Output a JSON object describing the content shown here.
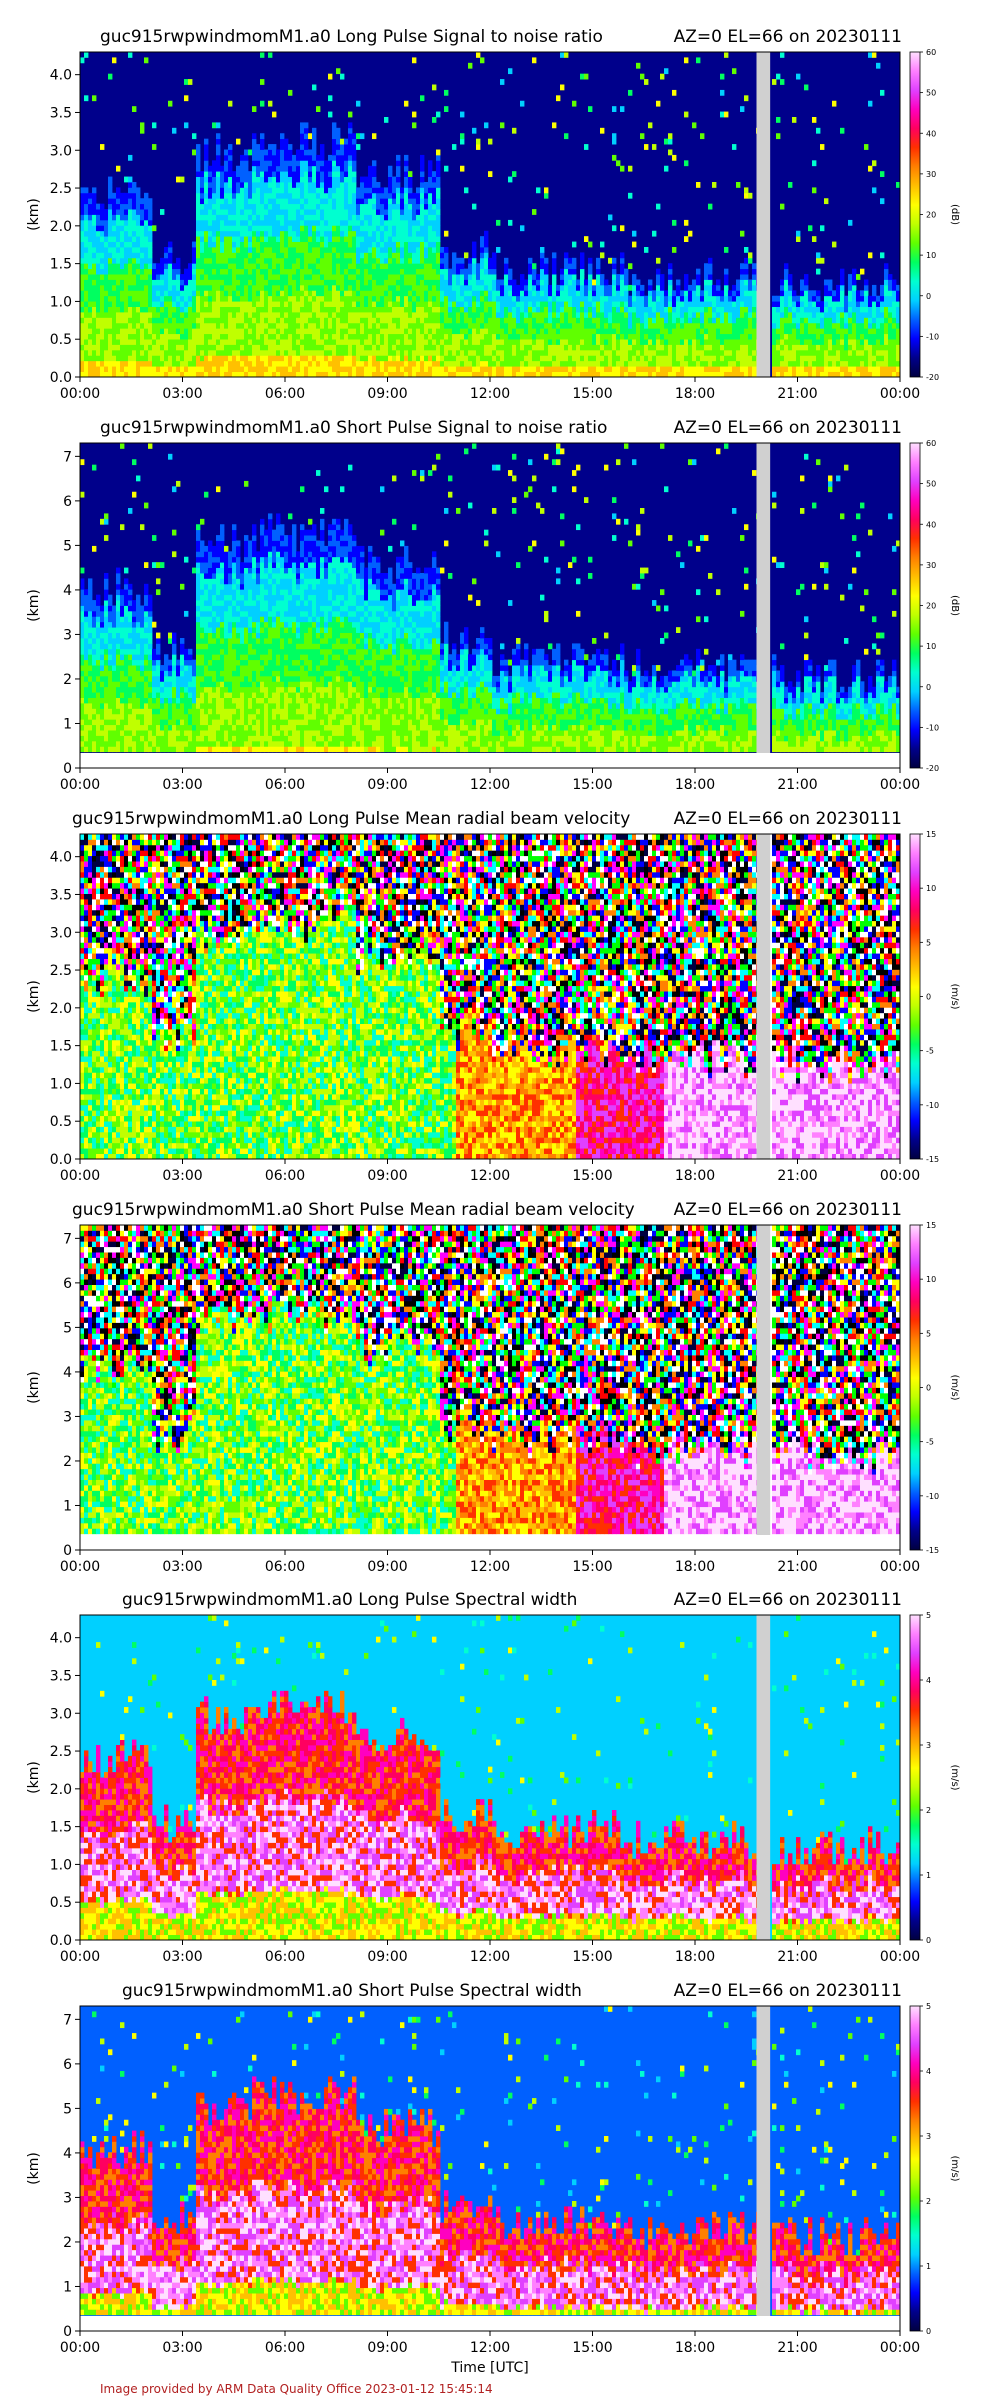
{
  "figure": {
    "xlabel": "Time [UTC]",
    "footer": "Image provided by ARM Data Quality Office 2023-01-12 15:45:14"
  },
  "colors": {
    "background": "#ffffff",
    "missing": "#d0d0d0",
    "footer": "#b22222",
    "colormap": [
      "#000040",
      "#00008b",
      "#0000ff",
      "#0060ff",
      "#00d0ff",
      "#00ffd0",
      "#00ff60",
      "#60ff00",
      "#c0ff00",
      "#ffff00",
      "#ffc000",
      "#ff8000",
      "#ff3000",
      "#ff0060",
      "#ff00c0",
      "#e040ff",
      "#ff80ff",
      "#ffe0ff"
    ]
  },
  "chart_data": [
    {
      "type": "heatmap",
      "title_left": "guc915rwpwindmomM1.a0 Long Pulse Signal to noise ratio",
      "title_right": "AZ=0 EL=66 on 20230111",
      "ylabel": "(km)",
      "xlim": [
        "00:00",
        "00:00"
      ],
      "ylim": [
        0,
        4.3
      ],
      "x_ticks": [
        "00:00",
        "03:00",
        "06:00",
        "09:00",
        "12:00",
        "15:00",
        "18:00",
        "21:00",
        "00:00"
      ],
      "y_ticks": [
        "0.0",
        "0.5",
        "1.0",
        "1.5",
        "2.0",
        "2.5",
        "3.0",
        "3.5",
        "4.0"
      ],
      "colorbar": {
        "unit": "(dB)",
        "ticks": [
          "-20",
          "-10",
          "0",
          "10",
          "20",
          "30",
          "40",
          "50",
          "60"
        ],
        "range": [
          -20,
          60
        ]
      },
      "missing_data": {
        "from_hour": 19.8,
        "to_hour": 20.2
      }
    },
    {
      "type": "heatmap",
      "title_left": "guc915rwpwindmomM1.a0 Short Pulse Signal to noise ratio",
      "title_right": "AZ=0 EL=66 on 20230111",
      "ylabel": "(km)",
      "xlim": [
        "00:00",
        "00:00"
      ],
      "ylim": [
        0,
        7.3
      ],
      "x_ticks": [
        "00:00",
        "03:00",
        "06:00",
        "09:00",
        "12:00",
        "15:00",
        "18:00",
        "21:00",
        "00:00"
      ],
      "y_ticks": [
        "0",
        "1",
        "2",
        "3",
        "4",
        "5",
        "6",
        "7"
      ],
      "colorbar": {
        "unit": "(dB)",
        "ticks": [
          "-20",
          "-10",
          "0",
          "10",
          "20",
          "30",
          "40",
          "50",
          "60"
        ],
        "range": [
          -20,
          60
        ]
      },
      "missing_data": {
        "from_hour": 19.8,
        "to_hour": 20.2
      }
    },
    {
      "type": "heatmap",
      "title_left": "guc915rwpwindmomM1.a0 Long Pulse Mean radial beam velocity",
      "title_right": "AZ=0 EL=66 on 20230111",
      "ylabel": "(km)",
      "xlim": [
        "00:00",
        "00:00"
      ],
      "ylim": [
        0,
        4.3
      ],
      "x_ticks": [
        "00:00",
        "03:00",
        "06:00",
        "09:00",
        "12:00",
        "15:00",
        "18:00",
        "21:00",
        "00:00"
      ],
      "y_ticks": [
        "0.0",
        "0.5",
        "1.0",
        "1.5",
        "2.0",
        "2.5",
        "3.0",
        "3.5",
        "4.0"
      ],
      "colorbar": {
        "unit": "(m/s)",
        "ticks": [
          "-15",
          "-10",
          "-5",
          "0",
          "5",
          "10",
          "15"
        ],
        "range": [
          -15,
          15
        ]
      },
      "missing_data": {
        "from_hour": 19.8,
        "to_hour": 20.2
      }
    },
    {
      "type": "heatmap",
      "title_left": "guc915rwpwindmomM1.a0 Short Pulse Mean radial beam velocity",
      "title_right": "AZ=0 EL=66 on 20230111",
      "ylabel": "(km)",
      "xlim": [
        "00:00",
        "00:00"
      ],
      "ylim": [
        0,
        7.3
      ],
      "x_ticks": [
        "00:00",
        "03:00",
        "06:00",
        "09:00",
        "12:00",
        "15:00",
        "18:00",
        "21:00",
        "00:00"
      ],
      "y_ticks": [
        "0",
        "1",
        "2",
        "3",
        "4",
        "5",
        "6",
        "7"
      ],
      "colorbar": {
        "unit": "(m/s)",
        "ticks": [
          "-15",
          "-10",
          "-5",
          "0",
          "5",
          "10",
          "15"
        ],
        "range": [
          -15,
          15
        ]
      },
      "missing_data": {
        "from_hour": 19.8,
        "to_hour": 20.2
      }
    },
    {
      "type": "heatmap",
      "title_left": "guc915rwpwindmomM1.a0 Long Pulse Spectral width",
      "title_right": "AZ=0 EL=66 on 20230111",
      "ylabel": "(km)",
      "xlim": [
        "00:00",
        "00:00"
      ],
      "ylim": [
        0,
        4.3
      ],
      "x_ticks": [
        "00:00",
        "03:00",
        "06:00",
        "09:00",
        "12:00",
        "15:00",
        "18:00",
        "21:00",
        "00:00"
      ],
      "y_ticks": [
        "0.0",
        "0.5",
        "1.0",
        "1.5",
        "2.0",
        "2.5",
        "3.0",
        "3.5",
        "4.0"
      ],
      "colorbar": {
        "unit": "(m/s)",
        "ticks": [
          "0",
          "1",
          "2",
          "3",
          "4",
          "5"
        ],
        "range": [
          0,
          5
        ]
      },
      "missing_data": {
        "from_hour": 19.8,
        "to_hour": 20.2
      }
    },
    {
      "type": "heatmap",
      "title_left": "guc915rwpwindmomM1.a0 Short Pulse Spectral width",
      "title_right": "AZ=0 EL=66 on 20230111",
      "ylabel": "(km)",
      "xlim": [
        "00:00",
        "00:00"
      ],
      "ylim": [
        0,
        7.3
      ],
      "x_ticks": [
        "00:00",
        "03:00",
        "06:00",
        "09:00",
        "12:00",
        "15:00",
        "18:00",
        "21:00",
        "00:00"
      ],
      "y_ticks": [
        "0",
        "1",
        "2",
        "3",
        "4",
        "5",
        "6",
        "7"
      ],
      "colorbar": {
        "unit": "(m/s)",
        "ticks": [
          "0",
          "1",
          "2",
          "3",
          "4",
          "5"
        ],
        "range": [
          0,
          5
        ]
      },
      "missing_data": {
        "from_hour": 19.8,
        "to_hour": 20.2
      }
    }
  ]
}
